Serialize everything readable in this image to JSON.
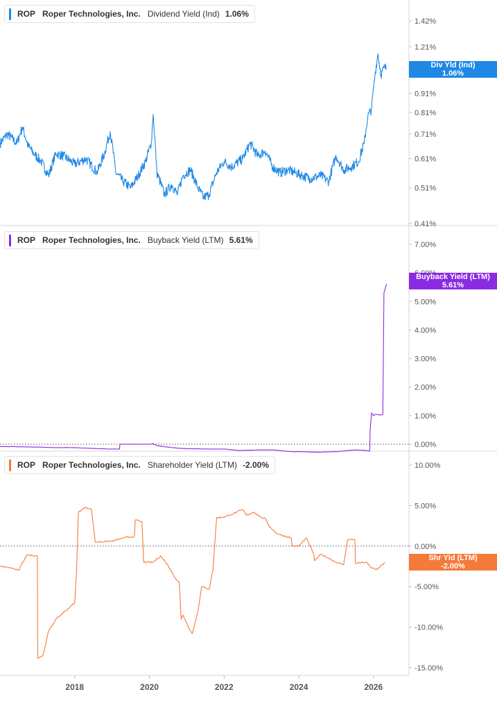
{
  "panels": [
    {
      "ticker": "ROP",
      "company": "Roper Technologies, Inc.",
      "metric": "Dividend Yield (Ind)",
      "value": "1.06%",
      "tag_title": "Div Yld (Ind)",
      "tag_value": "1.06%",
      "color": "#1f88e5"
    },
    {
      "ticker": "ROP",
      "company": "Roper Technologies, Inc.",
      "metric": "Buyback Yield (LTM)",
      "value": "5.61%",
      "tag_title": "Buyback Yield (LTM)",
      "tag_value": "5.61%",
      "color": "#8a2be2"
    },
    {
      "ticker": "ROP",
      "company": "Roper Technologies, Inc.",
      "metric": "Shareholder Yield (LTM)",
      "value": "-2.00%",
      "tag_title": "Shr Yld (LTM)",
      "tag_value": "-2.00%",
      "color": "#f47a3a"
    }
  ],
  "chart_data": [
    {
      "type": "line",
      "title": "ROP Roper Technologies, Inc. Dividend Yield (Ind)",
      "scale": "log",
      "ylim": [
        0.41,
        1.6
      ],
      "ytick_labels": [
        "1.42%",
        "1.21%",
        "1.06%",
        "0.91%",
        "0.81%",
        "0.71%",
        "0.61%",
        "0.51%",
        "0.41%"
      ],
      "ytick_values": [
        1.42,
        1.21,
        1.06,
        0.91,
        0.81,
        0.71,
        0.61,
        0.51,
        0.41
      ],
      "series": [
        {
          "name": "Dividend Yield (Ind)",
          "x": [
            2016.0,
            2016.2,
            2016.45,
            2016.6,
            2016.75,
            2016.9,
            2017.1,
            2017.3,
            2017.5,
            2017.7,
            2017.9,
            2018.0,
            2018.3,
            2018.6,
            2018.8,
            2018.95,
            2019.1,
            2019.3,
            2019.5,
            2019.7,
            2019.9,
            2020.05,
            2020.1,
            2020.2,
            2020.4,
            2020.6,
            2020.75,
            2020.9,
            2021.1,
            2021.3,
            2021.45,
            2021.6,
            2021.8,
            2022.0,
            2022.2,
            2022.5,
            2022.7,
            2022.9,
            2023.1,
            2023.3,
            2023.5,
            2023.7,
            2023.9,
            2024.1,
            2024.3,
            2024.6,
            2024.8,
            2025.0,
            2025.2,
            2025.4,
            2025.6,
            2025.75,
            2025.85,
            2025.95,
            2026.05,
            2026.12,
            2026.2,
            2026.3,
            2026.35
          ],
          "y": [
            0.67,
            0.71,
            0.67,
            0.74,
            0.66,
            0.63,
            0.6,
            0.55,
            0.63,
            0.62,
            0.6,
            0.59,
            0.61,
            0.56,
            0.63,
            0.72,
            0.56,
            0.53,
            0.51,
            0.55,
            0.6,
            0.67,
            0.8,
            0.56,
            0.49,
            0.52,
            0.49,
            0.55,
            0.57,
            0.51,
            0.48,
            0.49,
            0.56,
            0.6,
            0.58,
            0.61,
            0.67,
            0.62,
            0.64,
            0.58,
            0.56,
            0.57,
            0.56,
            0.55,
            0.54,
            0.55,
            0.53,
            0.62,
            0.57,
            0.58,
            0.6,
            0.67,
            0.79,
            0.83,
            1.04,
            1.16,
            1.02,
            1.07,
            1.06
          ]
        }
      ]
    },
    {
      "type": "line",
      "title": "ROP Roper Technologies, Inc. Buyback Yield (LTM)",
      "ylim": [
        -1.2,
        7.5
      ],
      "ytick_labels": [
        "7.00%",
        "6.00%",
        "5.00%",
        "4.00%",
        "3.00%",
        "2.00%",
        "1.00%",
        "0.00%"
      ],
      "ytick_values": [
        7,
        6,
        5,
        4,
        3,
        2,
        1,
        0
      ],
      "zero_line": true,
      "series": [
        {
          "name": "Buyback Yield (LTM)",
          "x": [
            2016.0,
            2017.0,
            2017.5,
            2018.0,
            2018.5,
            2019.0,
            2019.2,
            2019.21,
            2020.0,
            2020.1,
            2020.2,
            2020.6,
            2021.0,
            2021.8,
            2022.0,
            2022.4,
            2023.0,
            2023.3,
            2023.8,
            2024.0,
            2024.5,
            2025.0,
            2025.5,
            2025.8,
            2025.9,
            2025.91,
            2025.95,
            2026.0,
            2026.05,
            2026.2,
            2026.25,
            2026.28,
            2026.35
          ],
          "y": [
            -0.08,
            -0.1,
            -0.12,
            -0.12,
            -0.15,
            -0.17,
            -0.17,
            0.0,
            0.0,
            0.02,
            -0.05,
            -0.12,
            -0.16,
            -0.17,
            -0.17,
            -0.22,
            -0.2,
            -0.2,
            -0.26,
            -0.26,
            -0.28,
            -0.26,
            -0.2,
            -0.22,
            -0.24,
            0.5,
            1.1,
            1.0,
            1.05,
            1.02,
            1.05,
            5.3,
            5.61
          ]
        }
      ]
    },
    {
      "type": "line",
      "title": "ROP Roper Technologies, Inc. Shareholder Yield (LTM)",
      "ylim": [
        -16,
        11.5
      ],
      "ytick_labels": [
        "10.00%",
        "5.00%",
        "0.00%",
        "-5.00%",
        "-10.00%",
        "-15.00%"
      ],
      "ytick_values": [
        10,
        5,
        0,
        -5,
        -10,
        -15
      ],
      "zero_line": true,
      "xtick_labels": [
        "2018",
        "2020",
        "2022",
        "2024",
        "2026"
      ],
      "xtick_values": [
        2018,
        2020,
        2022,
        2024,
        2026
      ],
      "series": [
        {
          "name": "Shareholder Yield (LTM)",
          "x": [
            2016.0,
            2016.3,
            2016.5,
            2016.7,
            2016.72,
            2017.0,
            2017.01,
            2017.15,
            2017.3,
            2017.5,
            2017.75,
            2018.0,
            2018.05,
            2018.1,
            2018.3,
            2018.45,
            2018.55,
            2019.0,
            2019.3,
            2019.6,
            2019.62,
            2019.8,
            2019.85,
            2020.1,
            2020.3,
            2020.5,
            2020.7,
            2020.8,
            2020.85,
            2020.9,
            2021.1,
            2021.15,
            2021.3,
            2021.4,
            2021.6,
            2021.7,
            2021.8,
            2021.82,
            2022.0,
            2022.2,
            2022.5,
            2022.6,
            2022.8,
            2023.0,
            2023.1,
            2023.2,
            2023.4,
            2023.5,
            2023.8,
            2023.82,
            2024.0,
            2024.2,
            2024.4,
            2024.42,
            2024.6,
            2024.8,
            2025.0,
            2025.2,
            2025.3,
            2025.32,
            2025.5,
            2025.52,
            2025.8,
            2025.95,
            2026.1,
            2026.3
          ],
          "y": [
            -2.5,
            -2.7,
            -3.0,
            -1.2,
            -1.1,
            -1.2,
            -13.8,
            -13.5,
            -10.5,
            -9.0,
            -8.0,
            -7.0,
            -3.0,
            4.2,
            4.8,
            4.5,
            0.5,
            0.6,
            1.0,
            1.2,
            3.2,
            3.0,
            -2.0,
            -2.0,
            -1.2,
            -2.4,
            -4.0,
            -4.5,
            -9.0,
            -8.5,
            -10.5,
            -10.8,
            -8.0,
            -5.0,
            -5.3,
            -3.0,
            3.5,
            3.5,
            3.6,
            3.9,
            4.5,
            3.8,
            4.2,
            3.5,
            3.4,
            2.5,
            1.6,
            1.4,
            1.0,
            0.0,
            0.0,
            1.0,
            -1.0,
            -1.8,
            -1.0,
            -1.5,
            -2.0,
            -2.3,
            0.6,
            0.8,
            0.8,
            -2.1,
            -2.0,
            -2.7,
            -2.9,
            -2.0
          ]
        }
      ]
    }
  ]
}
